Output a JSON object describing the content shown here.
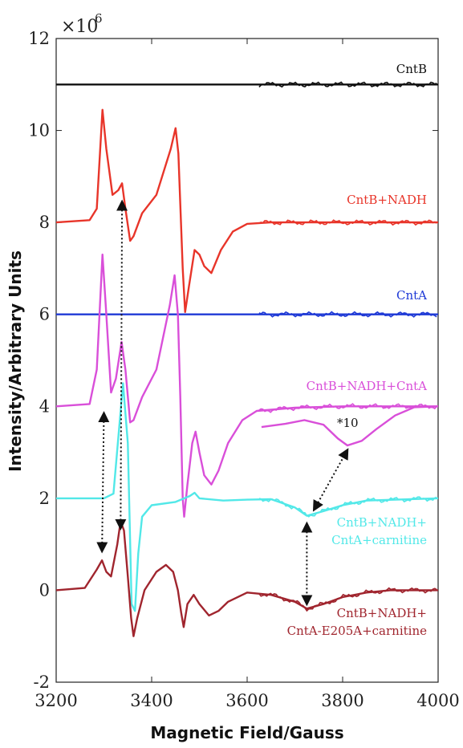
{
  "chart_data": {
    "type": "line",
    "xlabel": "Magnetic Field/Gauss",
    "ylabel": "Intensity/Arbitrary Units",
    "multiplier": "×10",
    "multiplier_exp": "6",
    "xlim": [
      3200,
      4000
    ],
    "ylim": [
      -2,
      12
    ],
    "xticks": [
      3200,
      3400,
      3600,
      3800,
      4000
    ],
    "yticks": [
      -2,
      0,
      2,
      4,
      6,
      8,
      10,
      12
    ],
    "grid": false,
    "annotation": "*10",
    "series": [
      {
        "name": "CntB",
        "color": "#111111",
        "baseline": 11.0,
        "points": [
          [
            3200,
            11.0
          ],
          [
            3400,
            11.0
          ],
          [
            3600,
            11.0
          ],
          [
            3800,
            11.0
          ],
          [
            4000,
            11.0
          ]
        ]
      },
      {
        "name": "CntB+NADH",
        "color": "#e8352a",
        "baseline": 8.0,
        "points": [
          [
            3200,
            8.0
          ],
          [
            3270,
            8.05
          ],
          [
            3285,
            8.3
          ],
          [
            3297,
            10.45
          ],
          [
            3305,
            9.6
          ],
          [
            3318,
            8.6
          ],
          [
            3330,
            8.7
          ],
          [
            3338,
            8.85
          ],
          [
            3345,
            8.3
          ],
          [
            3355,
            7.6
          ],
          [
            3362,
            7.7
          ],
          [
            3380,
            8.2
          ],
          [
            3410,
            8.6
          ],
          [
            3440,
            9.6
          ],
          [
            3450,
            10.05
          ],
          [
            3456,
            9.5
          ],
          [
            3465,
            7.0
          ],
          [
            3470,
            6.05
          ],
          [
            3478,
            6.6
          ],
          [
            3490,
            7.4
          ],
          [
            3500,
            7.3
          ],
          [
            3510,
            7.05
          ],
          [
            3525,
            6.9
          ],
          [
            3545,
            7.4
          ],
          [
            3570,
            7.8
          ],
          [
            3600,
            7.97
          ],
          [
            3650,
            8.0
          ],
          [
            4000,
            8.0
          ]
        ]
      },
      {
        "name": "CntA",
        "color": "#1f3ad6",
        "baseline": 6.0,
        "points": [
          [
            3200,
            6.0
          ],
          [
            4000,
            6.0
          ]
        ]
      },
      {
        "name": "CntB+NADH+CntA",
        "color": "#d94fd9",
        "baseline": 4.0,
        "points": [
          [
            3200,
            4.0
          ],
          [
            3270,
            4.05
          ],
          [
            3285,
            4.8
          ],
          [
            3297,
            7.3
          ],
          [
            3305,
            6.0
          ],
          [
            3315,
            4.3
          ],
          [
            3325,
            4.6
          ],
          [
            3337,
            5.4
          ],
          [
            3345,
            4.8
          ],
          [
            3355,
            3.65
          ],
          [
            3362,
            3.7
          ],
          [
            3380,
            4.2
          ],
          [
            3410,
            4.8
          ],
          [
            3438,
            6.2
          ],
          [
            3448,
            6.85
          ],
          [
            3455,
            6.0
          ],
          [
            3460,
            4.2
          ],
          [
            3465,
            2.0
          ],
          [
            3468,
            1.6
          ],
          [
            3475,
            2.3
          ],
          [
            3485,
            3.2
          ],
          [
            3492,
            3.45
          ],
          [
            3500,
            3.0
          ],
          [
            3510,
            2.5
          ],
          [
            3525,
            2.3
          ],
          [
            3540,
            2.6
          ],
          [
            3560,
            3.2
          ],
          [
            3590,
            3.7
          ],
          [
            3620,
            3.9
          ],
          [
            3700,
            3.97
          ],
          [
            3800,
            4.0
          ],
          [
            4000,
            4.0
          ]
        ]
      },
      {
        "name": "CntB+NADH+CntA+carnitine",
        "color": "#52e8e8",
        "baseline": 2.0,
        "points": [
          [
            3200,
            2.0
          ],
          [
            3300,
            2.0
          ],
          [
            3320,
            2.1
          ],
          [
            3340,
            4.5
          ],
          [
            3350,
            3.2
          ],
          [
            3358,
            -0.3
          ],
          [
            3365,
            -0.45
          ],
          [
            3372,
            0.8
          ],
          [
            3380,
            1.6
          ],
          [
            3400,
            1.85
          ],
          [
            3450,
            1.92
          ],
          [
            3480,
            2.05
          ],
          [
            3490,
            2.12
          ],
          [
            3500,
            2.0
          ],
          [
            3550,
            1.95
          ],
          [
            3600,
            1.97
          ],
          [
            3650,
            1.98
          ],
          [
            3700,
            1.8
          ],
          [
            3725,
            1.62
          ],
          [
            3760,
            1.72
          ],
          [
            3800,
            1.85
          ],
          [
            3850,
            1.95
          ],
          [
            4000,
            2.0
          ]
        ]
      },
      {
        "name": "CntB+NADH+CntA-E205A+carnitine",
        "color": "#a0252e",
        "baseline": 0.0,
        "points": [
          [
            3200,
            0.0
          ],
          [
            3260,
            0.05
          ],
          [
            3285,
            0.45
          ],
          [
            3296,
            0.65
          ],
          [
            3305,
            0.4
          ],
          [
            3315,
            0.3
          ],
          [
            3328,
            1.0
          ],
          [
            3335,
            1.5
          ],
          [
            3342,
            1.3
          ],
          [
            3350,
            0.3
          ],
          [
            3357,
            -0.6
          ],
          [
            3362,
            -1.0
          ],
          [
            3370,
            -0.6
          ],
          [
            3385,
            0.0
          ],
          [
            3410,
            0.4
          ],
          [
            3430,
            0.55
          ],
          [
            3445,
            0.4
          ],
          [
            3455,
            0.0
          ],
          [
            3462,
            -0.5
          ],
          [
            3467,
            -0.8
          ],
          [
            3475,
            -0.3
          ],
          [
            3488,
            -0.1
          ],
          [
            3500,
            -0.3
          ],
          [
            3520,
            -0.55
          ],
          [
            3540,
            -0.45
          ],
          [
            3560,
            -0.25
          ],
          [
            3600,
            -0.05
          ],
          [
            3650,
            -0.1
          ],
          [
            3700,
            -0.25
          ],
          [
            3725,
            -0.4
          ],
          [
            3760,
            -0.3
          ],
          [
            3800,
            -0.15
          ],
          [
            3850,
            -0.05
          ],
          [
            3900,
            0.0
          ],
          [
            4000,
            0.0
          ]
        ]
      }
    ],
    "insets": [
      {
        "series": "CntB+NADH+CntA",
        "color": "#d94fd9",
        "points": [
          [
            3630,
            3.55
          ],
          [
            3680,
            3.62
          ],
          [
            3720,
            3.7
          ],
          [
            3760,
            3.6
          ],
          [
            3790,
            3.3
          ],
          [
            3810,
            3.15
          ],
          [
            3840,
            3.25
          ],
          [
            3870,
            3.5
          ],
          [
            3910,
            3.8
          ],
          [
            3950,
            3.98
          ],
          [
            4000,
            4.0
          ]
        ]
      }
    ],
    "labels": [
      {
        "text": "CntB",
        "color": "#111111"
      },
      {
        "text": "CntB+NADH",
        "color": "#e8352a"
      },
      {
        "text": "CntA",
        "color": "#1f3ad6"
      },
      {
        "text": "CntB+NADH+CntA",
        "color": "#d94fd9"
      },
      {
        "text": "CntB+NADH+",
        "color": "#52e8e8"
      },
      {
        "text": "CntA+carnitine",
        "color": "#52e8e8"
      },
      {
        "text": "CntB+NADH+",
        "color": "#a0252e"
      },
      {
        "text": "CntA-E205A+carnitine",
        "color": "#a0252e"
      }
    ]
  }
}
